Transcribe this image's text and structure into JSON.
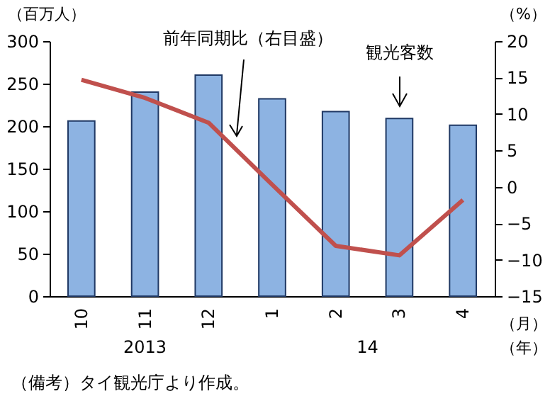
{
  "chart_data": {
    "type": "bar",
    "categories": [
      "10",
      "11",
      "12",
      "1",
      "2",
      "3",
      "4"
    ],
    "xlabel": "（月）",
    "ylabel": "（百万人）",
    "y2label": "（%）",
    "series": [
      {
        "color": "#8db3e2",
        "values": [
          206,
          240,
          260,
          232,
          217,
          209,
          201
        ]
      },
      {
        "type": "line",
        "axis": "y2",
        "color": "#c0504d",
        "values": [
          14.7,
          12.2,
          8.8,
          0.3,
          -8.1,
          -9.4,
          -1.8
        ]
      }
    ],
    "ylim": [
      0,
      300
    ],
    "yticks": [
      0,
      50,
      100,
      150,
      200,
      250,
      300
    ],
    "y2lim": [
      -15,
      20
    ],
    "y2ticks": [
      -15,
      -10,
      -5,
      0,
      5,
      10,
      15,
      20
    ],
    "grid": false,
    "annotations": [
      "2013",
      "14",
      "（年）",
      "前年同期比（右目盛）",
      "観光客数",
      "（備考）タイ観光庁より作成。"
    ]
  }
}
